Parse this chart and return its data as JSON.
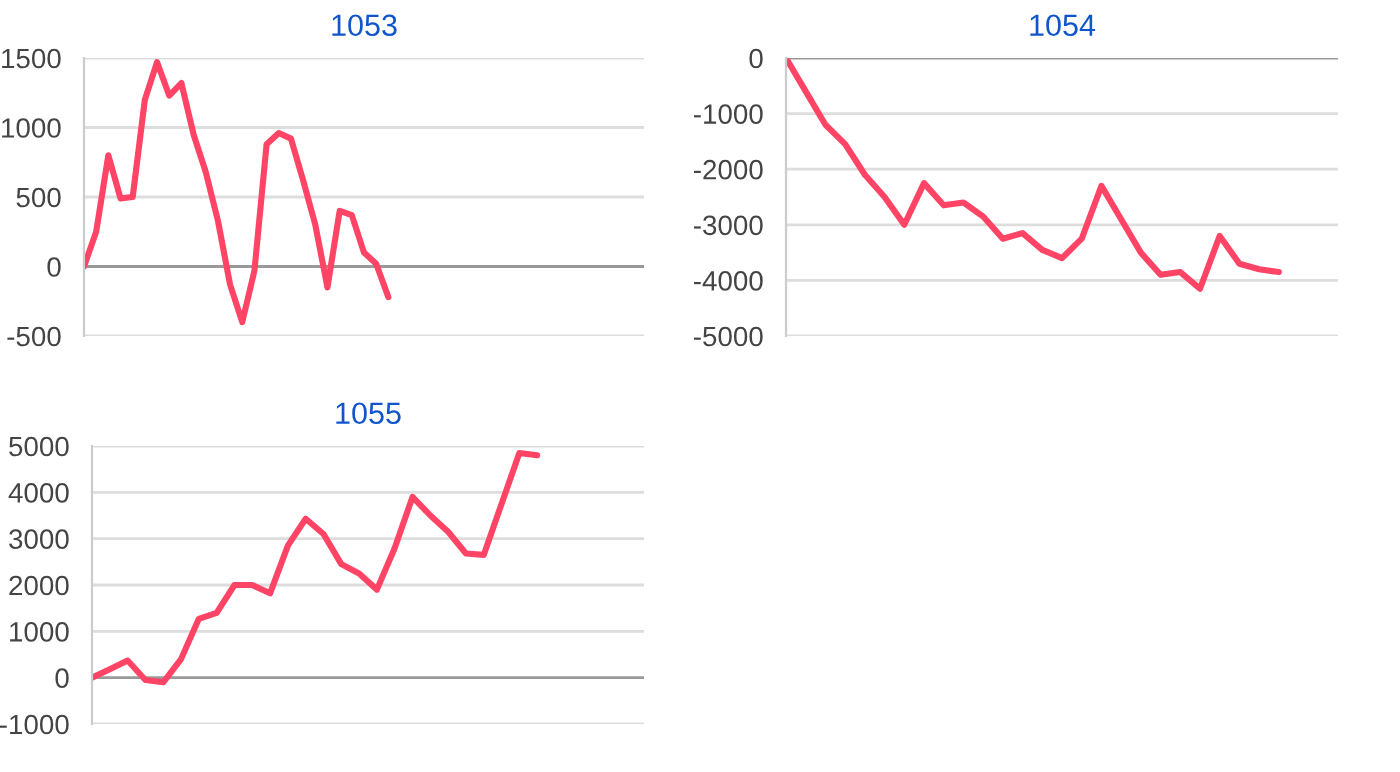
{
  "chart_data": [
    {
      "type": "line",
      "title": "1053",
      "categories": [
        null,
        null,
        null,
        null,
        null,
        null,
        null,
        null,
        null,
        null,
        null,
        null,
        null,
        null,
        null,
        null,
        null,
        null,
        null,
        null,
        null,
        null,
        null,
        null,
        null,
        null,
        null,
        null,
        null,
        null,
        null,
        null,
        null,
        null,
        null,
        null,
        null,
        null,
        null,
        null,
        null,
        null,
        null,
        null,
        null,
        null,
        null
      ],
      "series": [
        {
          "color": "#ff4466",
          "values": [
            0,
            250,
            800,
            490,
            500,
            1200,
            1470,
            1230,
            1320,
            950,
            680,
            330,
            -130,
            -400,
            -30,
            880,
            960,
            920,
            620,
            300,
            -150,
            400,
            370,
            100,
            20,
            -220,
            null,
            null,
            null,
            null,
            null,
            null,
            null,
            null,
            null,
            null,
            null,
            null,
            null,
            null,
            null,
            null,
            null,
            null,
            null,
            null,
            null
          ]
        }
      ],
      "ylim": [
        -500,
        1500
      ],
      "yticks": [
        -500,
        0,
        500,
        1000,
        1500
      ],
      "grid": "y",
      "tick_labels": "y",
      "legend": false,
      "marker": "none",
      "line_style": "solid"
    },
    {
      "type": "line",
      "title": "1054",
      "categories": [
        null,
        null,
        null,
        null,
        null,
        null,
        null,
        null,
        null,
        null,
        null,
        null,
        null,
        null,
        null,
        null,
        null,
        null,
        null,
        null,
        null,
        null,
        null,
        null,
        null,
        null,
        null,
        null,
        null
      ],
      "series": [
        {
          "color": "#ff4466",
          "values": [
            0,
            -600,
            -1200,
            -1550,
            -2100,
            -2500,
            -3000,
            -2250,
            -2650,
            -2600,
            -2850,
            -3250,
            -3150,
            -3450,
            -3600,
            -3250,
            -2300,
            -2900,
            -3500,
            -3900,
            -3850,
            -4150,
            -3200,
            -3700,
            -3800,
            -3850,
            null,
            null,
            null
          ]
        }
      ],
      "ylim": [
        -5000,
        0
      ],
      "yticks": [
        -5000,
        -4000,
        -3000,
        -2000,
        -1000,
        0
      ],
      "grid": "y",
      "tick_labels": "y",
      "legend": false,
      "marker": "none",
      "line_style": "solid"
    },
    {
      "type": "line",
      "title": "1055",
      "categories": [
        null,
        null,
        null,
        null,
        null,
        null,
        null,
        null,
        null,
        null,
        null,
        null,
        null,
        null,
        null,
        null,
        null,
        null,
        null,
        null,
        null,
        null,
        null,
        null,
        null,
        null,
        null,
        null,
        null,
        null,
        null,
        null
      ],
      "series": [
        {
          "color": "#ff4466",
          "values": [
            0,
            180,
            370,
            -50,
            -100,
            400,
            1270,
            1400,
            2000,
            2000,
            1820,
            2850,
            3430,
            3100,
            2450,
            2250,
            1900,
            2800,
            3900,
            3500,
            3150,
            2680,
            2650,
            3750,
            4850,
            4800,
            null,
            null,
            null,
            null,
            null,
            null
          ]
        }
      ],
      "ylim": [
        -1000,
        5000
      ],
      "yticks": [
        -1000,
        0,
        1000,
        2000,
        3000,
        4000,
        5000
      ],
      "grid": "y",
      "tick_labels": "y",
      "legend": false,
      "marker": "none",
      "line_style": "solid"
    }
  ]
}
